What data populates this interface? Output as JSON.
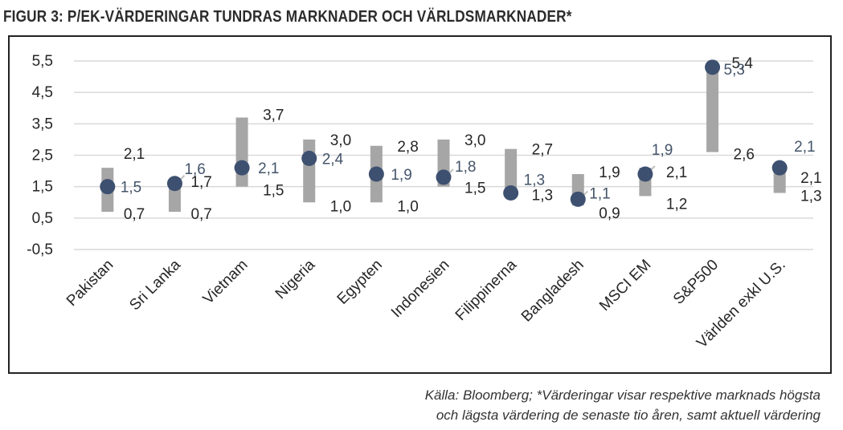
{
  "title": "FIGUR 3: P/EK-VÄRDERINGAR TUNDRAS MARKNADER OCH VÄRLDSMARKNADER*",
  "source_lines": [
    "Källa: Bloomberg; *Värderingar visar respektive marknads högsta",
    "och lägsta värdering de senaste tio åren, samt aktuell värdering"
  ],
  "colors": {
    "range_bar": "#a6a6a6",
    "marker": "#3d5070",
    "current_label": "#44546a",
    "label": "#262626",
    "grid": "#d9d9d9"
  },
  "chart_data": {
    "type": "range-dot",
    "categories": [
      "Pakistan",
      "Sri Lanka",
      "Vietnam",
      "Nigeria",
      "Egypten",
      "Indonesien",
      "Filippinerna",
      "Bangladesh",
      "MSCI EM",
      "S&P500",
      "Världen exkl U.S."
    ],
    "y_ticks": [
      "5,5",
      "4,5",
      "3,5",
      "2,5",
      "1,5",
      "0,5",
      "-0,5"
    ],
    "ylim": [
      -0.5,
      5.5
    ],
    "grid": true,
    "series": [
      {
        "values": [
          2.1,
          1.7,
          3.7,
          3.0,
          2.8,
          3.0,
          2.7,
          1.9,
          2.1,
          5.4,
          2.1
        ]
      },
      {
        "values": [
          0.7,
          0.7,
          1.5,
          1.0,
          1.0,
          1.5,
          1.3,
          0.9,
          1.2,
          2.6,
          1.3
        ]
      },
      {
        "values": [
          1.5,
          1.6,
          2.1,
          2.4,
          1.9,
          1.8,
          1.3,
          1.1,
          1.9,
          5.3,
          2.1
        ]
      }
    ],
    "high_labels": [
      "2,1",
      "1,7",
      "3,7",
      "3,0",
      "2,8",
      "3,0",
      "2,7",
      "1,9",
      "2,1",
      "5,4",
      "2,1"
    ],
    "low_labels": [
      "0,7",
      "0,7",
      "1,5",
      "1,0",
      "1,0",
      "1,5",
      "1,3",
      "0,9",
      "1,2",
      "2,6",
      "1,3"
    ],
    "current_labels": [
      "1,5",
      "1,6",
      "2,1",
      "2,4",
      "1,9",
      "1,8",
      "1,3",
      "1,1",
      "1,9",
      "5,3",
      "2,1"
    ]
  }
}
